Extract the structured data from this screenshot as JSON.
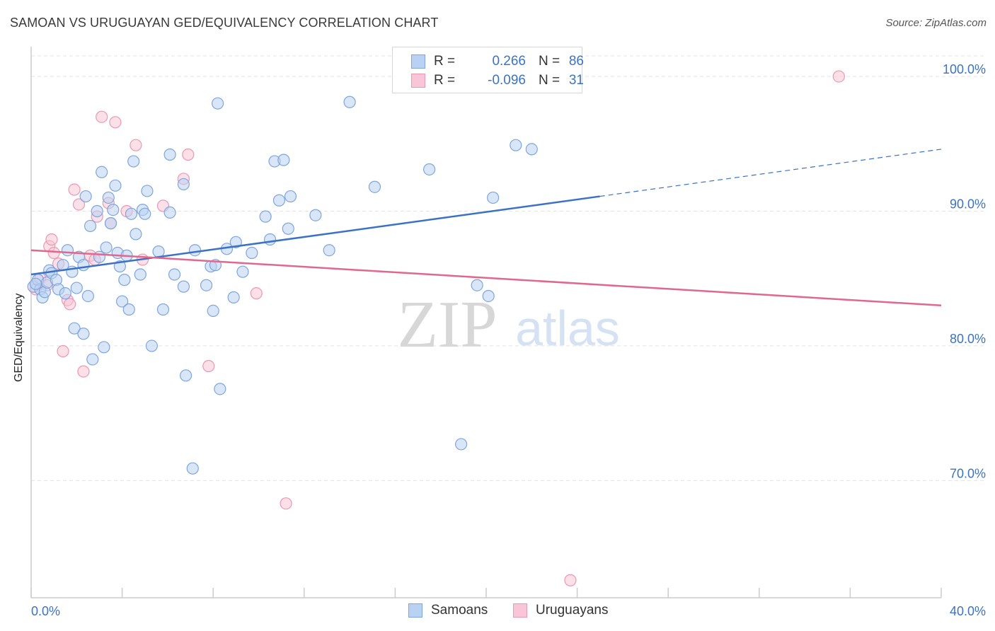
{
  "title": "SAMOAN VS URUGUAYAN GED/EQUIVALENCY CORRELATION CHART",
  "source": "Source: ZipAtlas.com",
  "watermark": {
    "zip": "ZIP",
    "atlas": "atlas"
  },
  "colors": {
    "blue": "#3b72c4",
    "blue_fill": "#b9d1f3",
    "blue_edge": "#7ea5de",
    "pink": "#e0688e",
    "pink_fill": "#f8c6d6",
    "pink_edge": "#eb98b3",
    "grid": "#e3e3e3",
    "axis_text": "#3b72c4"
  },
  "legend": {
    "rows": [
      {
        "r_label": "R =",
        "r_value": "0.266",
        "n_label": "N =",
        "n_value": "86"
      },
      {
        "r_label": "R =",
        "r_value": "-0.096",
        "n_label": "N =",
        "n_value": "31"
      }
    ]
  },
  "bottom_legend": {
    "samoans": "Samoans",
    "uruguayans": "Uruguayans"
  },
  "chart_data": {
    "type": "scatter",
    "title": "SAMOAN VS URUGUAYAN GED/EQUIVALENCY CORRELATION CHART",
    "xlabel": "",
    "ylabel": "GED/Equivalency",
    "xlim": [
      0,
      40
    ],
    "ylim": [
      61.3,
      102
    ],
    "x_tick_labels": [
      "0.0%",
      "40.0%"
    ],
    "y_ticks": [
      70,
      80,
      90,
      100
    ],
    "y_tick_labels": [
      "70.0%",
      "80.0%",
      "90.0%",
      "100.0%"
    ],
    "grid": true,
    "legend_position": "top-center",
    "series": [
      {
        "name": "Samoans",
        "r": 0.266,
        "n": 86,
        "trend": {
          "x0": 0,
          "y0": 85.3,
          "x1": 25,
          "y1": 91.1,
          "dashed_to_x": 40,
          "dashed_to_y": 94.6
        },
        "points": [
          [
            0.1,
            84.4
          ],
          [
            0.3,
            84.9
          ],
          [
            0.4,
            84.2
          ],
          [
            0.5,
            83.6
          ],
          [
            0.6,
            84.0
          ],
          [
            0.7,
            84.7
          ],
          [
            0.8,
            85.6
          ],
          [
            0.9,
            85.4
          ],
          [
            1.1,
            84.9
          ],
          [
            1.2,
            84.2
          ],
          [
            1.4,
            86.0
          ],
          [
            1.6,
            87.1
          ],
          [
            1.8,
            85.5
          ],
          [
            2.0,
            84.3
          ],
          [
            2.1,
            86.6
          ],
          [
            2.3,
            86.0
          ],
          [
            2.4,
            91.1
          ],
          [
            2.5,
            83.7
          ],
          [
            1.9,
            81.3
          ],
          [
            2.3,
            80.9
          ],
          [
            2.7,
            79.0
          ],
          [
            2.6,
            88.9
          ],
          [
            2.9,
            90.0
          ],
          [
            3.0,
            86.6
          ],
          [
            3.1,
            92.9
          ],
          [
            3.3,
            87.3
          ],
          [
            3.4,
            91.0
          ],
          [
            3.5,
            89.1
          ],
          [
            3.6,
            90.1
          ],
          [
            3.2,
            79.9
          ],
          [
            3.8,
            86.9
          ],
          [
            3.9,
            85.9
          ],
          [
            4.0,
            83.3
          ],
          [
            4.1,
            84.9
          ],
          [
            4.2,
            86.7
          ],
          [
            4.3,
            82.7
          ],
          [
            4.4,
            89.8
          ],
          [
            4.5,
            93.7
          ],
          [
            4.6,
            88.3
          ],
          [
            4.8,
            85.3
          ],
          [
            4.9,
            90.1
          ],
          [
            5.0,
            89.8
          ],
          [
            5.1,
            91.5
          ],
          [
            5.3,
            80.0
          ],
          [
            5.6,
            87.0
          ],
          [
            5.8,
            82.7
          ],
          [
            6.1,
            89.9
          ],
          [
            6.1,
            94.2
          ],
          [
            6.3,
            85.3
          ],
          [
            6.7,
            84.4
          ],
          [
            6.7,
            92.0
          ],
          [
            6.8,
            77.8
          ],
          [
            7.1,
            70.9
          ],
          [
            7.2,
            87.1
          ],
          [
            7.7,
            84.5
          ],
          [
            7.9,
            85.9
          ],
          [
            8.0,
            82.6
          ],
          [
            8.1,
            86.0
          ],
          [
            8.3,
            76.8
          ],
          [
            8.2,
            98.0
          ],
          [
            8.6,
            87.2
          ],
          [
            8.9,
            83.6
          ],
          [
            9.0,
            87.7
          ],
          [
            9.3,
            85.5
          ],
          [
            9.7,
            86.9
          ],
          [
            10.3,
            89.6
          ],
          [
            10.5,
            87.9
          ],
          [
            10.7,
            93.7
          ],
          [
            10.9,
            90.8
          ],
          [
            11.1,
            93.8
          ],
          [
            11.3,
            88.7
          ],
          [
            11.4,
            91.1
          ],
          [
            12.5,
            89.7
          ],
          [
            13.1,
            87.1
          ],
          [
            14.0,
            98.1
          ],
          [
            15.1,
            91.8
          ],
          [
            17.5,
            93.1
          ],
          [
            18.9,
            72.7
          ],
          [
            19.6,
            84.5
          ],
          [
            20.1,
            83.7
          ],
          [
            20.3,
            91.0
          ],
          [
            21.3,
            94.9
          ],
          [
            22.0,
            94.6
          ],
          [
            0.2,
            84.6
          ],
          [
            1.5,
            83.9
          ],
          [
            3.7,
            91.9
          ]
        ]
      },
      {
        "name": "Uruguayans",
        "r": -0.096,
        "n": 31,
        "trend": {
          "x0": 0,
          "y0": 87.1,
          "x1": 40,
          "y1": 83.0
        },
        "points": [
          [
            0.2,
            84.2
          ],
          [
            0.4,
            85.0
          ],
          [
            0.7,
            84.5
          ],
          [
            0.8,
            87.4
          ],
          [
            0.9,
            87.9
          ],
          [
            1.0,
            86.9
          ],
          [
            1.2,
            86.1
          ],
          [
            1.4,
            79.6
          ],
          [
            1.6,
            83.4
          ],
          [
            1.7,
            83.1
          ],
          [
            1.9,
            91.6
          ],
          [
            2.1,
            90.5
          ],
          [
            2.3,
            78.1
          ],
          [
            2.6,
            86.7
          ],
          [
            2.8,
            86.4
          ],
          [
            2.9,
            89.6
          ],
          [
            3.1,
            97.0
          ],
          [
            3.4,
            90.6
          ],
          [
            3.5,
            89.1
          ],
          [
            3.7,
            96.6
          ],
          [
            4.2,
            90.0
          ],
          [
            4.6,
            94.9
          ],
          [
            4.9,
            86.4
          ],
          [
            5.8,
            90.4
          ],
          [
            6.7,
            92.4
          ],
          [
            6.9,
            94.2
          ],
          [
            7.8,
            78.5
          ],
          [
            9.9,
            83.9
          ],
          [
            11.2,
            68.3
          ],
          [
            23.7,
            62.6
          ],
          [
            35.5,
            100.0
          ]
        ]
      }
    ]
  }
}
